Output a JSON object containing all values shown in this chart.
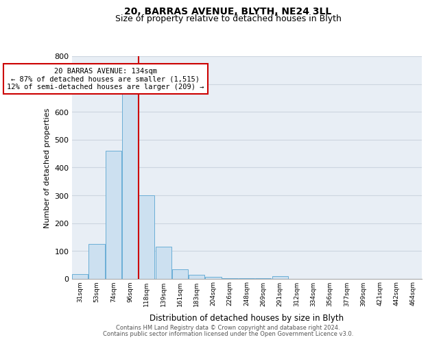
{
  "title1": "20, BARRAS AVENUE, BLYTH, NE24 3LL",
  "title2": "Size of property relative to detached houses in Blyth",
  "xlabel": "Distribution of detached houses by size in Blyth",
  "ylabel": "Number of detached properties",
  "bar_color": "#cce0f0",
  "bar_edge_color": "#6aaed6",
  "bar_categories": [
    "31sqm",
    "53sqm",
    "74sqm",
    "96sqm",
    "118sqm",
    "139sqm",
    "161sqm",
    "183sqm",
    "204sqm",
    "226sqm",
    "248sqm",
    "269sqm",
    "291sqm",
    "312sqm",
    "334sqm",
    "356sqm",
    "377sqm",
    "399sqm",
    "421sqm",
    "442sqm",
    "464sqm"
  ],
  "bar_values": [
    18,
    125,
    460,
    665,
    300,
    115,
    35,
    15,
    8,
    3,
    3,
    3,
    10,
    0,
    0,
    0,
    0,
    0,
    0,
    0,
    0
  ],
  "ylim": [
    0,
    800
  ],
  "yticks": [
    0,
    100,
    200,
    300,
    400,
    500,
    600,
    700,
    800
  ],
  "vline_x_index": 3.5,
  "vline_color": "#cc0000",
  "annotation_title": "20 BARRAS AVENUE: 134sqm",
  "annotation_line1": "← 87% of detached houses are smaller (1,515)",
  "annotation_line2": "12% of semi-detached houses are larger (209) →",
  "annotation_box_color": "#ffffff",
  "annotation_box_edge": "#cc0000",
  "grid_color": "#ccd5e0",
  "bg_color": "#e8eef5",
  "footer1": "Contains HM Land Registry data © Crown copyright and database right 2024.",
  "footer2": "Contains public sector information licensed under the Open Government Licence v3.0."
}
